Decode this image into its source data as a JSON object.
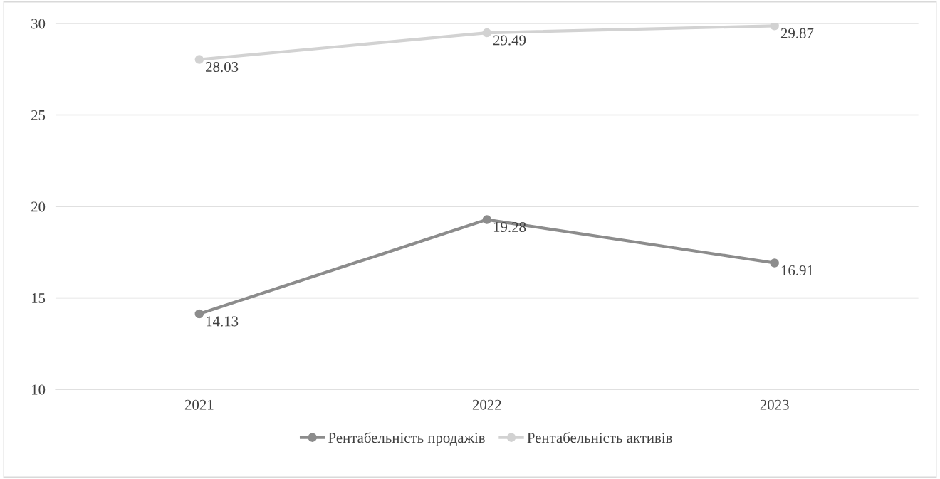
{
  "chart_data": {
    "type": "line",
    "categories": [
      "2021",
      "2022",
      "2023"
    ],
    "series": [
      {
        "name": "Рентабельність продажів",
        "color": "#8c8c8c",
        "values": [
          14.13,
          19.28,
          16.91
        ]
      },
      {
        "name": "Рентабельність активів",
        "color": "#d2d2d2",
        "values": [
          28.03,
          29.49,
          29.87
        ]
      }
    ],
    "ylim": [
      10,
      30
    ],
    "yticks": [
      10,
      15,
      20,
      25,
      30
    ],
    "grid": "y",
    "legend": "bottom",
    "marker": "circle",
    "line_style": "solid",
    "data_labels": true
  }
}
